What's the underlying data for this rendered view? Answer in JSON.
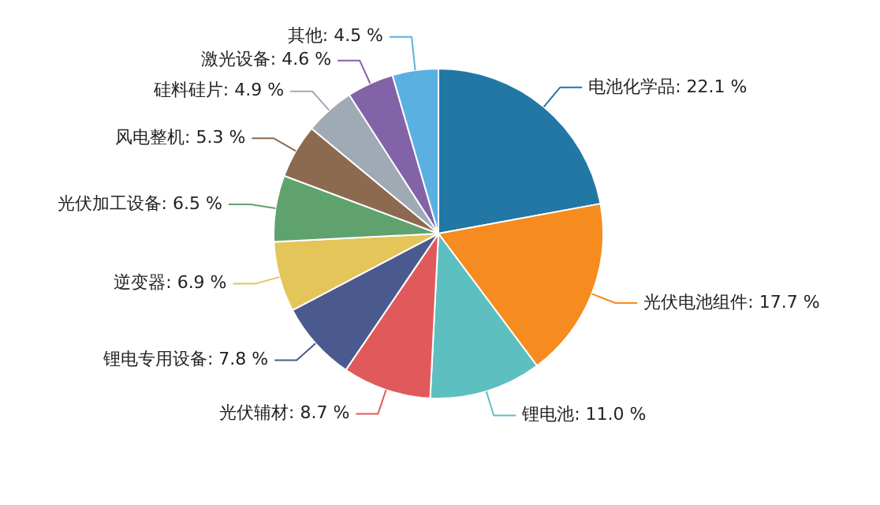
{
  "chart_data": {
    "type": "pie",
    "categories": [
      "电池化学品",
      "光伏电池组件",
      "锂电池",
      "光伏辅材",
      "锂电专用设备",
      "逆变器",
      "光伏加工设备",
      "风电整机",
      "硅料硅片",
      "激光设备",
      "其他"
    ],
    "values": [
      22.1,
      17.7,
      11.0,
      8.7,
      7.8,
      6.9,
      6.5,
      5.3,
      4.9,
      4.6,
      4.5
    ],
    "value_labels": [
      "22.1 %",
      "17.7 %",
      "11.0 %",
      "8.7 %",
      "7.8 %",
      "6.9 %",
      "6.5 %",
      "5.3 %",
      "4.9 %",
      "4.6 %",
      "4.5 %"
    ],
    "colors": [
      "#2377a4",
      "#f68b1f",
      "#5ebfc1",
      "#e05a5b",
      "#4b5a8e",
      "#e4c55a",
      "#5fa26e",
      "#8c6a50",
      "#a0aab4",
      "#8263a8",
      "#5bb0e2"
    ],
    "legend": false
  }
}
